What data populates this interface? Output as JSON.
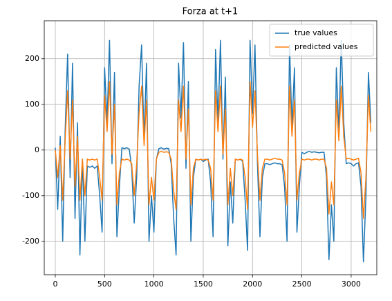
{
  "chart_data": {
    "type": "line",
    "title": "Forza at t+1",
    "x": [
      0,
      25,
      50,
      75,
      100,
      125,
      150,
      175,
      200,
      225,
      250,
      275,
      300,
      325,
      350,
      375,
      400,
      425,
      450,
      475,
      500,
      525,
      550,
      575,
      600,
      625,
      650,
      675,
      700,
      725,
      750,
      775,
      800,
      825,
      850,
      875,
      900,
      925,
      950,
      975,
      1000,
      1025,
      1050,
      1075,
      1100,
      1125,
      1150,
      1175,
      1200,
      1225,
      1250,
      1275,
      1300,
      1325,
      1350,
      1375,
      1400,
      1425,
      1450,
      1475,
      1500,
      1525,
      1550,
      1575,
      1600,
      1625,
      1650,
      1675,
      1700,
      1725,
      1750,
      1775,
      1800,
      1825,
      1850,
      1875,
      1900,
      1925,
      1950,
      1975,
      2000,
      2025,
      2050,
      2075,
      2100,
      2125,
      2150,
      2175,
      2200,
      2225,
      2250,
      2275,
      2300,
      2325,
      2350,
      2375,
      2400,
      2425,
      2450,
      2475,
      2500,
      2525,
      2550,
      2575,
      2600,
      2625,
      2650,
      2675,
      2700,
      2725,
      2750,
      2775,
      2800,
      2825,
      2850,
      2875,
      2900,
      2925,
      2950,
      2975,
      3000,
      3025,
      3050,
      3075,
      3100,
      3125,
      3150,
      3175,
      3200
    ],
    "series": [
      {
        "name": "true values",
        "color": "#1f77b4",
        "values": [
          5,
          -130,
          30,
          -200,
          40,
          210,
          -60,
          190,
          -150,
          60,
          -230,
          -20,
          -200,
          -35,
          -38,
          -35,
          -40,
          -35,
          -100,
          -180,
          180,
          60,
          240,
          -30,
          170,
          -190,
          -80,
          5,
          3,
          5,
          2,
          -40,
          -160,
          -60,
          140,
          230,
          20,
          190,
          -200,
          -100,
          -180,
          -20,
          3,
          5,
          2,
          4,
          3,
          -30,
          -150,
          -230,
          190,
          70,
          235,
          -40,
          150,
          -200,
          -60,
          -20,
          -22,
          -20,
          -25,
          -22,
          -20,
          -70,
          -190,
          220,
          60,
          240,
          -20,
          160,
          -210,
          -70,
          -160,
          -20,
          -22,
          -20,
          -25,
          -110,
          -220,
          240,
          80,
          230,
          -30,
          -190,
          -60,
          -30,
          -30,
          -32,
          -30,
          -28,
          -30,
          -30,
          -32,
          -80,
          -200,
          230,
          50,
          180,
          -180,
          -80,
          -5,
          -8,
          -5,
          -3,
          -5,
          -4,
          -5,
          -6,
          -5,
          -5,
          -60,
          -240,
          -120,
          -200,
          180,
          40,
          240,
          60,
          -30,
          -28,
          -30,
          -35,
          -30,
          -28,
          -80,
          -245,
          -100,
          170,
          60
        ]
      },
      {
        "name": "predicted values",
        "color": "#ff7f0e",
        "values": [
          0,
          -60,
          10,
          -110,
          20,
          130,
          -20,
          110,
          -80,
          30,
          -110,
          -20,
          -100,
          -20,
          -22,
          -20,
          -22,
          -20,
          -60,
          -110,
          120,
          40,
          150,
          -10,
          100,
          -120,
          -50,
          -20,
          -22,
          -20,
          -22,
          -30,
          -100,
          -30,
          80,
          140,
          10,
          110,
          -120,
          -60,
          -110,
          -20,
          -5,
          -3,
          -5,
          -4,
          -5,
          -20,
          -90,
          -130,
          110,
          40,
          140,
          -20,
          90,
          -120,
          -40,
          -20,
          -22,
          -20,
          -22,
          -20,
          -22,
          -40,
          -110,
          130,
          40,
          140,
          -10,
          90,
          -120,
          -40,
          -100,
          -20,
          -22,
          -20,
          -22,
          -60,
          -130,
          150,
          50,
          130,
          -10,
          -110,
          -40,
          -20,
          -20,
          -22,
          -20,
          -18,
          -20,
          -20,
          -22,
          -50,
          -120,
          140,
          30,
          110,
          -110,
          -50,
          -20,
          -22,
          -20,
          -20,
          -22,
          -20,
          -20,
          -22,
          -20,
          -20,
          -40,
          -140,
          -70,
          -120,
          110,
          20,
          140,
          30,
          -20,
          -18,
          -20,
          -22,
          -20,
          -18,
          -50,
          -150,
          -60,
          120,
          40
        ]
      }
    ],
    "xlim": [
      -112,
      3260
    ],
    "ylim": [
      -273,
      283
    ],
    "xticks": [
      0,
      500,
      1000,
      1500,
      2000,
      2500,
      3000
    ],
    "yticks": [
      -200,
      -100,
      0,
      100,
      200
    ],
    "grid": true,
    "legend": "upper right"
  }
}
